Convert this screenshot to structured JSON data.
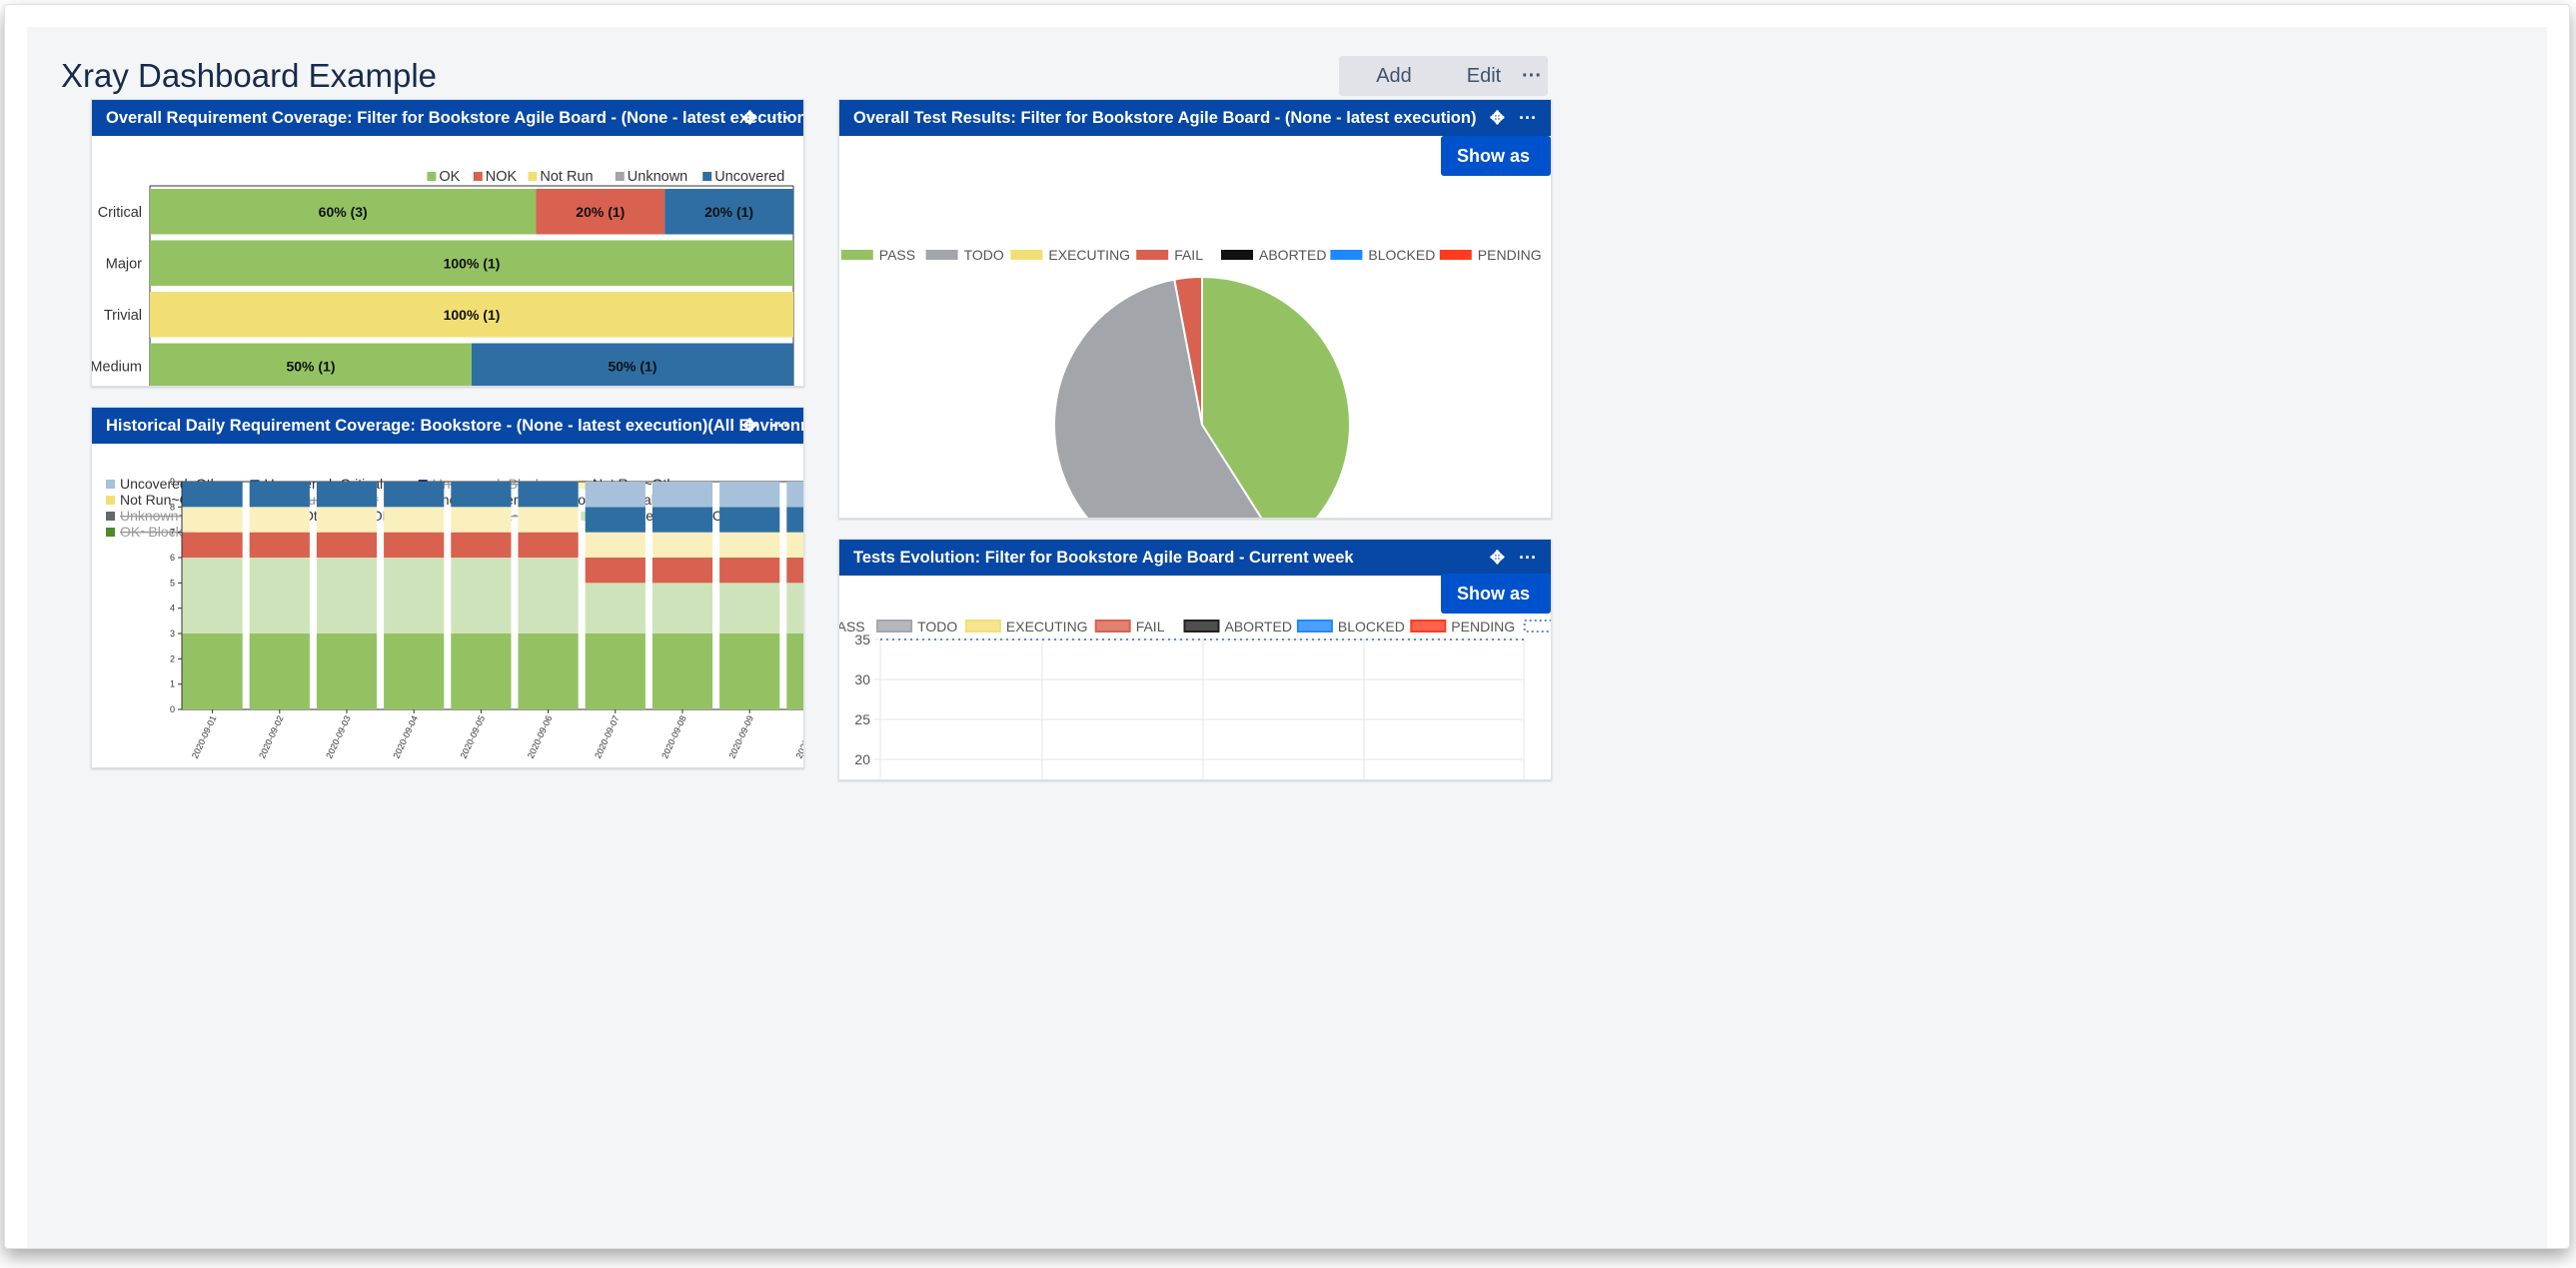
{
  "dashboard": {
    "title": "Xray Dashboard Example",
    "add_gadget_label": "Add gadget",
    "edit_layout_label": "Edit layout",
    "more_label": "···"
  },
  "icons": {
    "move": "move-icon",
    "more": "more-icon"
  },
  "colors": {
    "header_bg": "#0747a6",
    "primary_button": "#0052cc"
  },
  "gadget_req_coverage": {
    "title": "Overall Requirement Coverage: Filter for Bookstore Agile Board - (None - latest execution)(All Environments)",
    "chart_data": {
      "type": "bar",
      "orientation": "horizontal",
      "stacked": true,
      "categories": [
        "Critical",
        "Major",
        "Trivial",
        "Medium"
      ],
      "series": [
        {
          "name": "OK",
          "color": "#94c262",
          "values": [
            60,
            100,
            0,
            50
          ],
          "labels": [
            "60% (3)",
            "100% (1)",
            "",
            "50% (1)"
          ]
        },
        {
          "name": "NOK",
          "color": "#d9614f",
          "values": [
            20,
            0,
            0,
            0
          ],
          "labels": [
            "20% (1)",
            "",
            "",
            ""
          ]
        },
        {
          "name": "Not Run",
          "color": "#f2df73",
          "values": [
            0,
            0,
            100,
            0
          ],
          "labels": [
            "",
            "",
            "100% (1)",
            ""
          ]
        },
        {
          "name": "Unknown",
          "color": "#a2a5aa",
          "values": [
            0,
            0,
            0,
            0
          ],
          "labels": [
            "",
            "",
            "",
            ""
          ]
        },
        {
          "name": "Uncovered",
          "color": "#2f6ea3",
          "values": [
            20,
            0,
            0,
            50
          ],
          "labels": [
            "20% (1)",
            "",
            "",
            "50% (1)"
          ]
        }
      ],
      "xlim": [
        0,
        100
      ],
      "xticks": [
        0,
        10,
        20,
        30,
        40,
        50,
        60,
        70,
        80,
        90,
        100
      ],
      "legend_position": "top-right"
    }
  },
  "gadget_historical": {
    "title": "Historical Daily Requirement Coverage: Bookstore - (None - latest execution)(All Environments)",
    "chart_data": {
      "type": "bar",
      "stacked": true,
      "categories": [
        "2020-09-01",
        "2020-09-02",
        "2020-09-03",
        "2020-09-04",
        "2020-09-05",
        "2020-09-06",
        "2020-09-07",
        "2020-09-08",
        "2020-09-09",
        "2020-09-10"
      ],
      "legend": [
        {
          "name": "Uncovered~Other",
          "color": "#a6c1d9",
          "hidden": false
        },
        {
          "name": "Uncovered~Critical",
          "color": "#2f6ea3",
          "hidden": false
        },
        {
          "name": "Uncovered~Blocker",
          "color": "#1d3f66",
          "hidden": true
        },
        {
          "name": "Not Run~Other",
          "color": "#faf0bd",
          "hidden": false
        },
        {
          "name": "Not Run~Critical",
          "color": "#f2df73",
          "hidden": false
        },
        {
          "name": "Not Run~Blocker",
          "color": "#c9a938",
          "hidden": true
        },
        {
          "name": "Unknown~Other",
          "color": "#d6d7d9",
          "hidden": false
        },
        {
          "name": "Unknown~Critical",
          "color": "#a2a5aa",
          "hidden": false
        },
        {
          "name": "Unknown~Blocker",
          "color": "#66686c",
          "hidden": true
        },
        {
          "name": "NOK~Other",
          "color": "#f0b4ad",
          "hidden": false
        },
        {
          "name": "NOK~Critical",
          "color": "#d9614f",
          "hidden": false
        },
        {
          "name": "NOK~Blocker",
          "color": "#a8332a",
          "hidden": true
        },
        {
          "name": "OK~Other",
          "color": "#cfe3bb",
          "hidden": false
        },
        {
          "name": "OK~Critical",
          "color": "#94c262",
          "hidden": false
        },
        {
          "name": "OK~Blocker",
          "color": "#4e8a2c",
          "hidden": true
        }
      ],
      "series": [
        {
          "name": "OK~Critical",
          "values": [
            3,
            3,
            3,
            3,
            3,
            3,
            3,
            3,
            3,
            3
          ]
        },
        {
          "name": "OK~Other",
          "values": [
            3,
            3,
            3,
            3,
            3,
            3,
            2,
            2,
            2,
            2
          ]
        },
        {
          "name": "NOK~Critical",
          "values": [
            1,
            1,
            1,
            1,
            1,
            1,
            1,
            1,
            1,
            1
          ]
        },
        {
          "name": "Not Run~Other",
          "values": [
            1,
            1,
            1,
            1,
            1,
            1,
            1,
            1,
            1,
            1
          ]
        },
        {
          "name": "Uncovered~Critical",
          "values": [
            1,
            1,
            1,
            1,
            1,
            1,
            1,
            1,
            1,
            1
          ]
        },
        {
          "name": "Uncovered~Other",
          "values": [
            0,
            0,
            0,
            0,
            0,
            0,
            1,
            1,
            1,
            1
          ]
        }
      ],
      "ylim": [
        0,
        9
      ],
      "yticks": [
        0,
        1,
        2,
        3,
        4,
        5,
        6,
        7,
        8,
        9
      ],
      "legend_position": "top"
    }
  },
  "gadget_test_results": {
    "title": "Overall Test Results: Filter for Bookstore Agile Board - (None - latest execution)",
    "show_table_label": "Show as Table",
    "chart_data": {
      "type": "pie",
      "labels": [
        "PASS",
        "TODO",
        "EXECUTING",
        "FAIL",
        "ABORTED",
        "BLOCKED",
        "PENDING"
      ],
      "colors": [
        "#94c262",
        "#a2a5aa",
        "#f2df73",
        "#d9614f",
        "#111111",
        "#1e88ff",
        "#ff3b1f"
      ],
      "values": [
        41,
        56,
        0,
        3,
        0,
        0,
        0
      ],
      "legend_position": "top"
    }
  },
  "gadget_tests_evolution": {
    "title": "Tests Evolution: Filter for Bookstore Agile Board - Current week",
    "show_table_label": "Show as Table",
    "chart_data": {
      "type": "line",
      "legend": [
        {
          "name": "PASS",
          "color": "#94c262"
        },
        {
          "name": "TODO",
          "color": "#a2a5aa"
        },
        {
          "name": "EXECUTING",
          "color": "#f2df73"
        },
        {
          "name": "FAIL",
          "color": "#d9614f"
        },
        {
          "name": "ABORTED",
          "color": "#222222"
        },
        {
          "name": "BLOCKED",
          "color": "#1e88ff"
        },
        {
          "name": "PENDING",
          "color": "#ff3b1f"
        },
        {
          "name": "TOTAL",
          "color": "#5b8fc7",
          "dashed": true
        }
      ],
      "series": [
        {
          "name": "TOTAL",
          "values": [
            35,
            35,
            35,
            35,
            35
          ]
        }
      ],
      "yticks_visible": [
        20,
        25,
        30,
        35
      ],
      "legend_position": "top"
    }
  }
}
